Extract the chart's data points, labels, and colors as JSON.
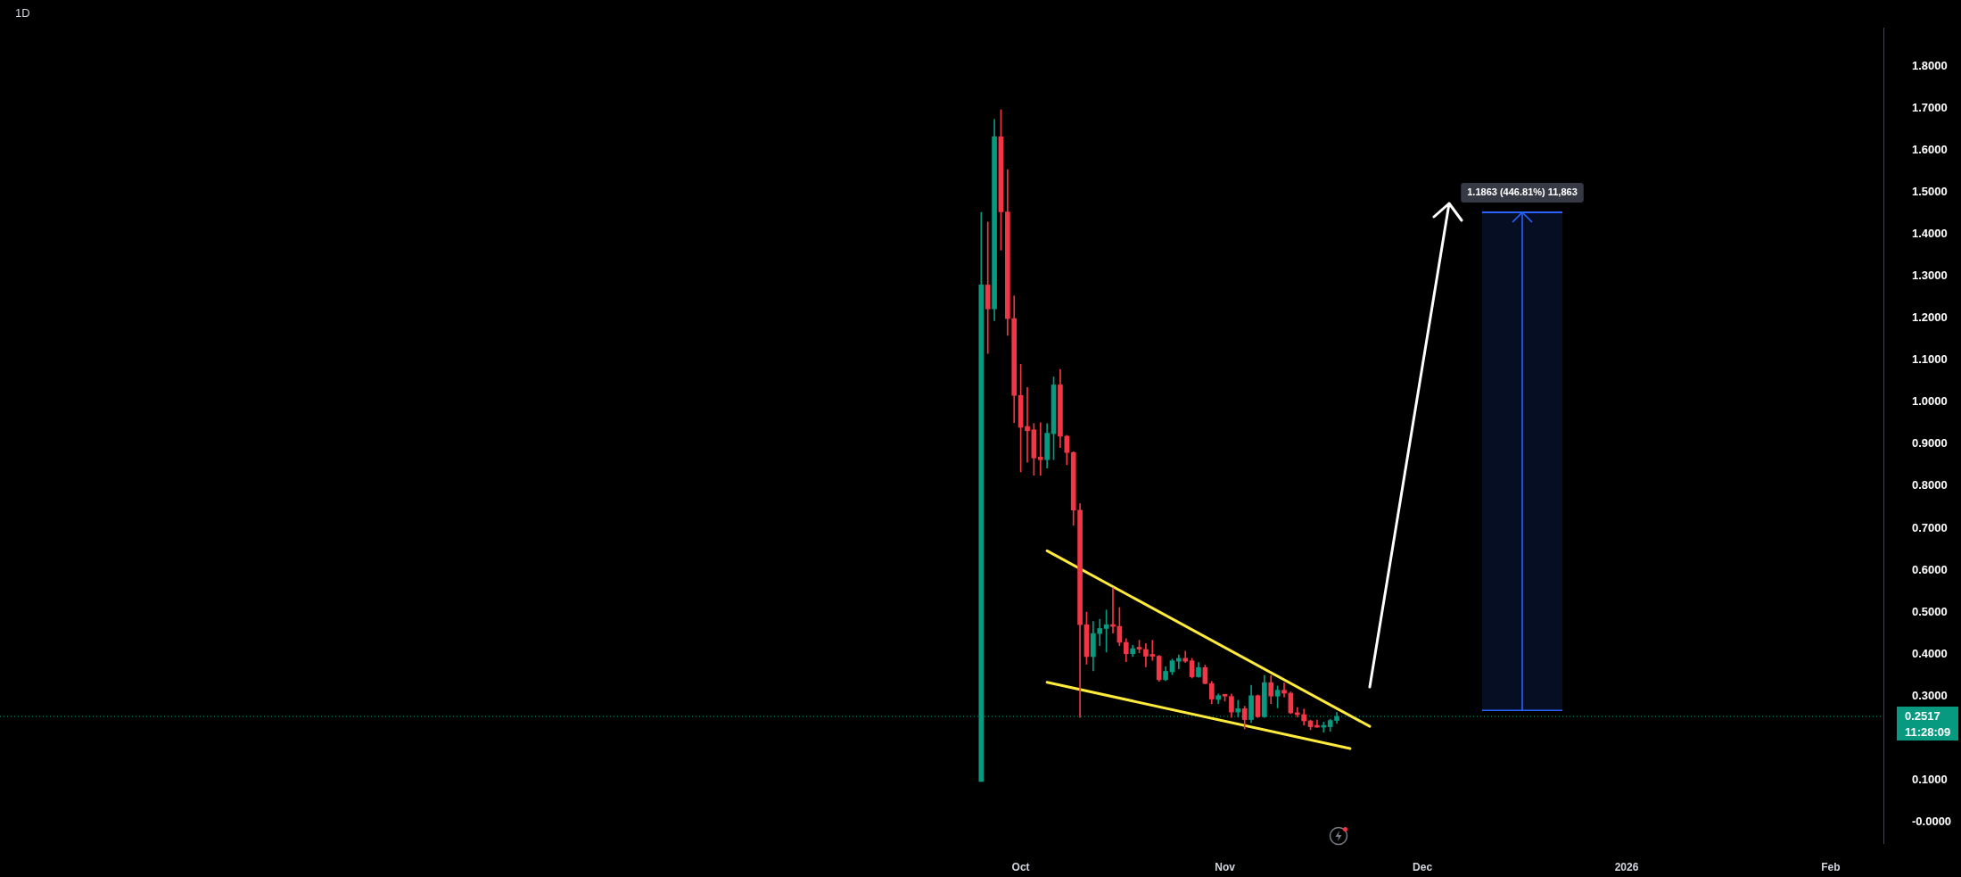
{
  "chart_data": {
    "type": "candlestick",
    "title": "1D",
    "x": [
      "2025-09-25",
      "2025-09-26",
      "2025-09-27",
      "2025-09-28",
      "2025-09-29",
      "2025-09-30",
      "2025-10-01",
      "2025-10-02",
      "2025-10-03",
      "2025-10-04",
      "2025-10-05",
      "2025-10-06",
      "2025-10-07",
      "2025-10-08",
      "2025-10-09",
      "2025-10-10",
      "2025-10-11",
      "2025-10-12",
      "2025-10-13",
      "2025-10-14",
      "2025-10-15",
      "2025-10-16",
      "2025-10-17",
      "2025-10-18",
      "2025-10-19",
      "2025-10-20",
      "2025-10-21",
      "2025-10-22",
      "2025-10-23",
      "2025-10-24",
      "2025-10-25",
      "2025-10-26",
      "2025-10-27",
      "2025-10-28",
      "2025-10-29",
      "2025-10-30",
      "2025-10-31",
      "2025-11-01",
      "2025-11-02",
      "2025-11-03",
      "2025-11-04",
      "2025-11-05",
      "2025-11-06",
      "2025-11-07",
      "2025-11-08",
      "2025-11-09",
      "2025-11-10",
      "2025-11-11",
      "2025-11-12",
      "2025-11-13",
      "2025-11-14",
      "2025-11-15",
      "2025-11-16",
      "2025-11-17",
      "2025-11-18"
    ],
    "ohlc": [
      [
        0.097,
        1.452,
        0.097,
        1.279
      ],
      [
        1.279,
        1.429,
        1.116,
        1.222
      ],
      [
        1.222,
        1.673,
        1.194,
        1.632
      ],
      [
        1.632,
        1.696,
        1.362,
        1.453
      ],
      [
        1.453,
        1.554,
        1.159,
        1.199
      ],
      [
        1.199,
        1.253,
        0.951,
        1.016
      ],
      [
        1.016,
        1.09,
        0.834,
        0.94
      ],
      [
        0.942,
        1.035,
        0.857,
        0.932
      ],
      [
        0.934,
        0.949,
        0.826,
        0.867
      ],
      [
        0.869,
        0.951,
        0.826,
        0.863
      ],
      [
        0.863,
        0.949,
        0.843,
        0.926
      ],
      [
        0.925,
        1.06,
        0.863,
        1.041
      ],
      [
        1.041,
        1.078,
        0.892,
        0.919
      ],
      [
        0.919,
        0.921,
        0.851,
        0.88
      ],
      [
        0.88,
        0.882,
        0.707,
        0.743
      ],
      [
        0.743,
        0.758,
        0.249,
        0.47
      ],
      [
        0.47,
        0.5,
        0.376,
        0.394
      ],
      [
        0.394,
        0.478,
        0.36,
        0.449
      ],
      [
        0.449,
        0.483,
        0.42,
        0.461
      ],
      [
        0.461,
        0.505,
        0.405,
        0.47
      ],
      [
        0.469,
        0.558,
        0.45,
        0.466
      ],
      [
        0.466,
        0.511,
        0.42,
        0.428
      ],
      [
        0.428,
        0.437,
        0.382,
        0.401
      ],
      [
        0.401,
        0.421,
        0.394,
        0.413
      ],
      [
        0.413,
        0.433,
        0.403,
        0.412
      ],
      [
        0.411,
        0.425,
        0.37,
        0.395
      ],
      [
        0.396,
        0.433,
        0.385,
        0.395
      ],
      [
        0.395,
        0.397,
        0.335,
        0.339
      ],
      [
        0.339,
        0.37,
        0.337,
        0.359
      ],
      [
        0.358,
        0.388,
        0.351,
        0.384
      ],
      [
        0.383,
        0.398,
        0.365,
        0.39
      ],
      [
        0.39,
        0.407,
        0.38,
        0.383
      ],
      [
        0.384,
        0.39,
        0.343,
        0.346
      ],
      [
        0.346,
        0.38,
        0.345,
        0.368
      ],
      [
        0.368,
        0.374,
        0.329,
        0.33
      ],
      [
        0.33,
        0.335,
        0.282,
        0.293
      ],
      [
        0.292,
        0.305,
        0.282,
        0.301
      ],
      [
        0.301,
        0.301,
        0.288,
        0.3
      ],
      [
        0.299,
        0.305,
        0.249,
        0.262
      ],
      [
        0.262,
        0.29,
        0.25,
        0.27
      ],
      [
        0.27,
        0.276,
        0.222,
        0.244
      ],
      [
        0.244,
        0.326,
        0.237,
        0.301
      ],
      [
        0.301,
        0.303,
        0.249,
        0.251
      ],
      [
        0.251,
        0.349,
        0.249,
        0.332
      ],
      [
        0.332,
        0.349,
        0.282,
        0.3
      ],
      [
        0.3,
        0.324,
        0.272,
        0.314
      ],
      [
        0.314,
        0.331,
        0.298,
        0.307
      ],
      [
        0.307,
        0.31,
        0.258,
        0.26
      ],
      [
        0.26,
        0.273,
        0.25,
        0.256
      ],
      [
        0.256,
        0.269,
        0.231,
        0.241
      ],
      [
        0.241,
        0.243,
        0.22,
        0.227
      ],
      [
        0.227,
        0.243,
        0.226,
        0.226
      ],
      [
        0.226,
        0.238,
        0.214,
        0.227
      ],
      [
        0.227,
        0.245,
        0.216,
        0.242
      ],
      [
        0.242,
        0.261,
        0.235,
        0.2517
      ]
    ],
    "colors": [
      "#089981",
      "#f23645",
      "#089981",
      "#f23645",
      "#f23645",
      "#f23645",
      "#f23645",
      "#f23645",
      "#f23645",
      "#f23645",
      "#089981",
      "#089981",
      "#f23645",
      "#f23645",
      "#f23645",
      "#f23645",
      "#f23645",
      "#089981",
      "#089981",
      "#089981",
      "#f23645",
      "#f23645",
      "#f23645",
      "#089981",
      "#f23645",
      "#f23645",
      "#f23645",
      "#f23645",
      "#089981",
      "#089981",
      "#089981",
      "#f23645",
      "#f23645",
      "#089981",
      "#f23645",
      "#f23645",
      "#089981",
      "#f23645",
      "#f23645",
      "#089981",
      "#f23645",
      "#089981",
      "#f23645",
      "#089981",
      "#f23645",
      "#089981",
      "#f23645",
      "#f23645",
      "#f23645",
      "#f23645",
      "#f23645",
      "#f23645",
      "#089981",
      "#089981",
      "#089981"
    ],
    "series": [
      {
        "type": "line",
        "x": [
          "2025-10-05",
          "2025-11-23"
        ],
        "values": [
          0.646,
          0.228
        ],
        "color": "#ffeb3b"
      },
      {
        "type": "line",
        "x": [
          "2025-10-05",
          "2025-11-20"
        ],
        "values": [
          0.333,
          0.175
        ],
        "color": "#ffeb3b"
      }
    ],
    "xlim": [
      "2025-04-29",
      "2026-02-09"
    ],
    "xticks": [
      {
        "value": "2025-10-01",
        "label": "Oct"
      },
      {
        "value": "2025-11-01",
        "label": "Nov"
      },
      {
        "value": "2025-12-01",
        "label": "Dec"
      },
      {
        "value": "2026-01-01",
        "label": "2026"
      },
      {
        "value": "2026-02-01",
        "label": "Feb"
      }
    ],
    "ylim": [
      -0.05,
      1.89
    ],
    "yticks": [
      {
        "value": 1.8,
        "label": "1.8000"
      },
      {
        "value": 1.7,
        "label": "1.7000"
      },
      {
        "value": 1.6,
        "label": "1.6000"
      },
      {
        "value": 1.5,
        "label": "1.5000"
      },
      {
        "value": 1.4,
        "label": "1.4000"
      },
      {
        "value": 1.3,
        "label": "1.3000"
      },
      {
        "value": 1.2,
        "label": "1.2000"
      },
      {
        "value": 1.1,
        "label": "1.1000"
      },
      {
        "value": 1.0,
        "label": "1.0000"
      },
      {
        "value": 0.9,
        "label": "0.9000"
      },
      {
        "value": 0.8,
        "label": "0.8000"
      },
      {
        "value": 0.7,
        "label": "0.7000"
      },
      {
        "value": 0.6,
        "label": "0.6000"
      },
      {
        "value": 0.5,
        "label": "0.5000"
      },
      {
        "value": 0.4,
        "label": "0.4000"
      },
      {
        "value": 0.3,
        "label": "0.3000"
      },
      {
        "value": 0.1,
        "label": "0.1000"
      },
      {
        "value": 0,
        "label": "-0.0000"
      }
    ],
    "ref_lines": [
      {
        "axis": "y",
        "value": 0.2517,
        "label": "0.2517",
        "color": "#089981",
        "line_style": "dotted"
      }
    ],
    "bands": [
      {
        "axis": "y",
        "from": 0.2655,
        "to": 1.4518,
        "label": "1.1863 (446.81%) 11,863",
        "color": "#2962ff"
      }
    ],
    "annotations": [
      "11:28:09"
    ]
  }
}
